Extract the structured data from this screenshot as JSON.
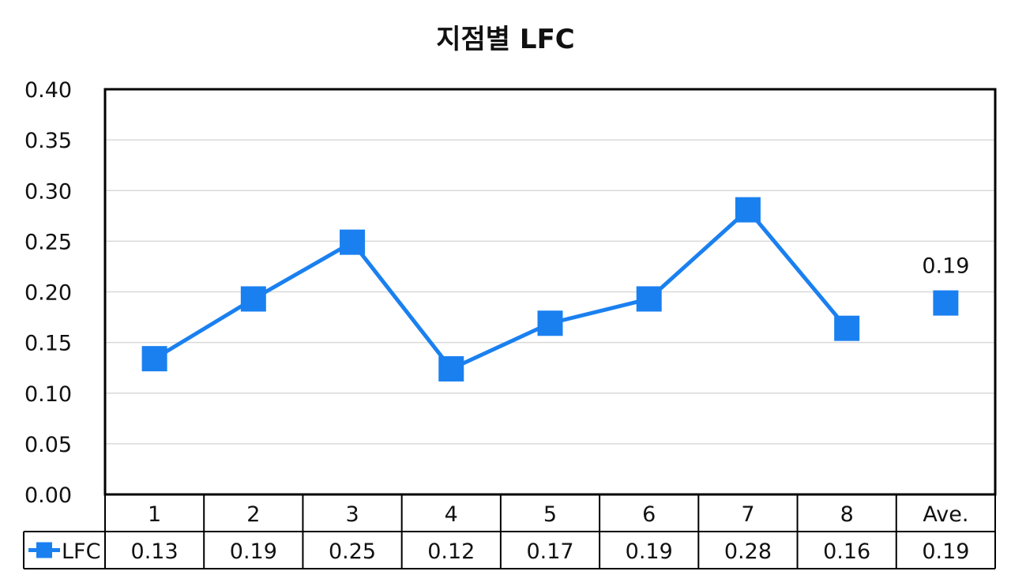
{
  "chart_data": {
    "type": "line",
    "title": "지점별 LFC",
    "categories": [
      "1",
      "2",
      "3",
      "4",
      "5",
      "6",
      "7",
      "8",
      "Ave."
    ],
    "series": [
      {
        "name": "LFC",
        "values": [
          0.134,
          0.193,
          0.249,
          0.124,
          0.169,
          0.193,
          0.281,
          0.164,
          0.189
        ],
        "table_values": [
          "0.13",
          "0.19",
          "0.25",
          "0.12",
          "0.17",
          "0.19",
          "0.28",
          "0.16",
          "0.19"
        ],
        "color": "#1a80f0",
        "connected_points": 8
      }
    ],
    "ylim": [
      0,
      0.4
    ],
    "yticks": [
      "0.00",
      "0.05",
      "0.10",
      "0.15",
      "0.20",
      "0.25",
      "0.30",
      "0.35",
      "0.40"
    ],
    "grid": true,
    "legend": "data-table",
    "annotation": {
      "category": "Ave.",
      "text": "0.19"
    }
  }
}
